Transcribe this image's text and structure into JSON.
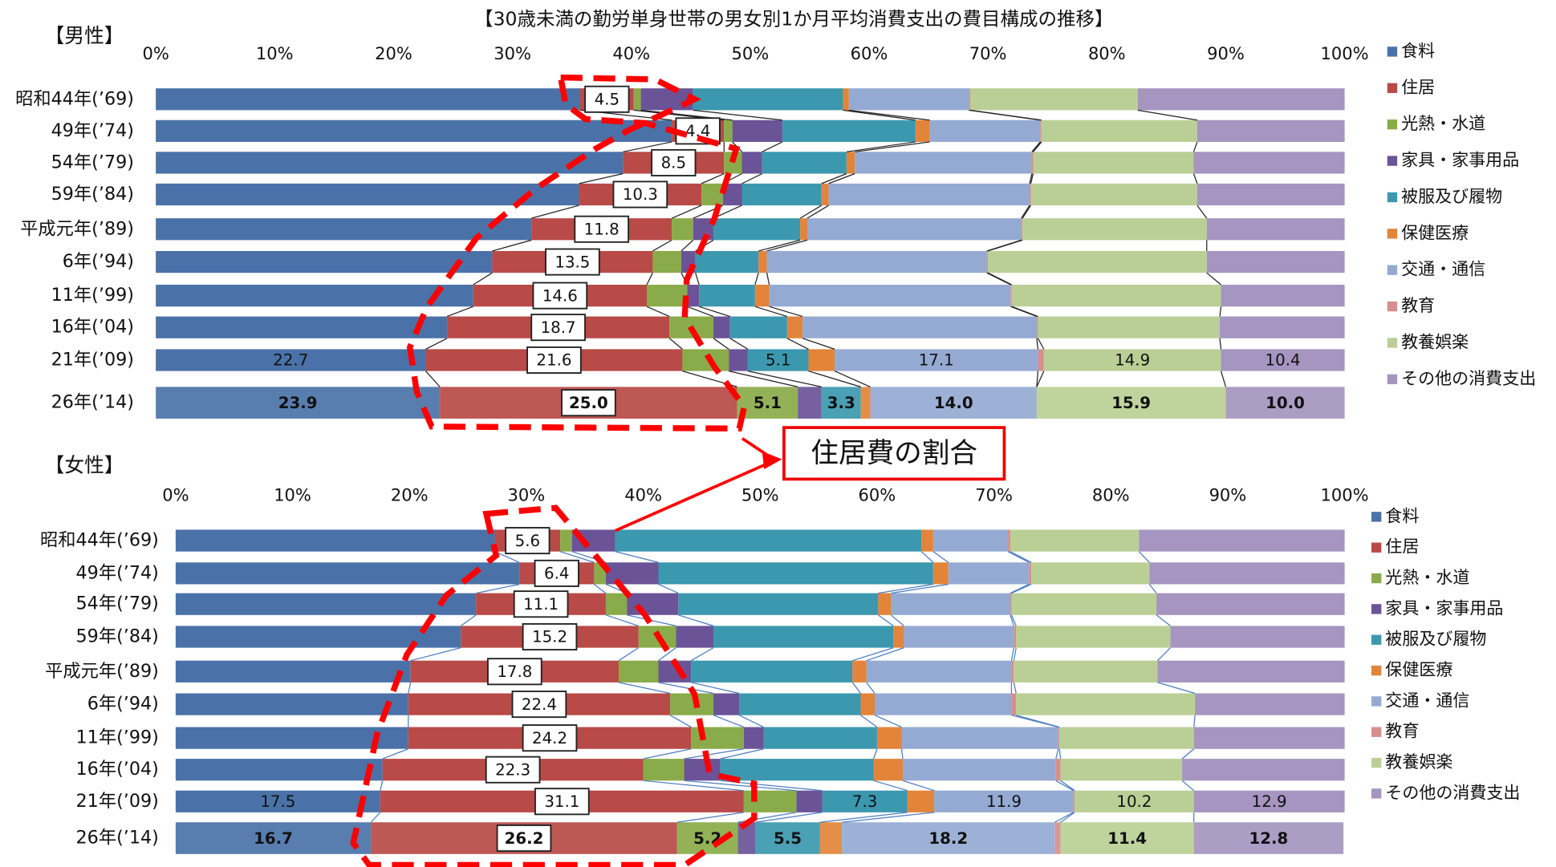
{
  "title": "【30歳未満の勤労単身世帯の男女別1か月平均消費支出の費目構成の推移】",
  "annotation": "住居費の割合",
  "chart_data": [
    {
      "type": "bar",
      "orientation": "horizontal",
      "stacked": true,
      "title": "【男性】",
      "categories": [
        "昭和44年(’69)",
        "49年(’74)",
        "54年(’79)",
        "59年(’84)",
        "平成元年(’89)",
        "6年(’94)",
        "11年(’99)",
        "16年(’04)",
        "21年(’09)",
        "26年(’14)"
      ],
      "xlim": [
        0,
        100
      ],
      "xticks": [
        {
          "value": 0,
          "label": "0%"
        },
        {
          "value": 10,
          "label": "10%"
        },
        {
          "value": 20,
          "label": "20%"
        },
        {
          "value": 30,
          "label": "30%"
        },
        {
          "value": 40,
          "label": "40%"
        },
        {
          "value": 50,
          "label": "50%"
        },
        {
          "value": 60,
          "label": "60%"
        },
        {
          "value": 70,
          "label": "70%"
        },
        {
          "value": 80,
          "label": "80%"
        },
        {
          "value": 90,
          "label": "90%"
        },
        {
          "value": 100,
          "label": "100%"
        }
      ],
      "series": [
        {
          "name": "食料",
          "color": "#4a72a8",
          "values": [
            35.7,
            43.4,
            39.3,
            35.6,
            31.6,
            28.3,
            26.7,
            24.5,
            22.7,
            23.9
          ],
          "value_labels": [
            null,
            null,
            null,
            null,
            null,
            null,
            null,
            null,
            "22.7",
            "23.9"
          ]
        },
        {
          "name": "住居",
          "color": "#b84a47",
          "values": [
            4.5,
            4.4,
            8.5,
            10.3,
            11.8,
            13.5,
            14.6,
            18.7,
            21.6,
            25
          ],
          "value_labels": [
            "4.5",
            "4.4",
            "8.5",
            "10.3",
            "11.8",
            "13.5",
            "14.6",
            "18.7",
            "21.6",
            "25.0"
          ]
        },
        {
          "name": "光熱・水道",
          "color": "#8aab49",
          "values": [
            0.6,
            0.7,
            1.5,
            1.8,
            1.8,
            2.4,
            3.4,
            3.7,
            3.9,
            5.1
          ],
          "value_labels": [
            null,
            null,
            null,
            null,
            null,
            null,
            null,
            null,
            null,
            "5.1"
          ]
        },
        {
          "name": "家具・家事用品",
          "color": "#6b5397",
          "values": [
            4.4,
            4.2,
            1.7,
            1.6,
            1.7,
            1.2,
            1.0,
            1.4,
            1.6,
            2.0
          ]
        },
        {
          "name": "被服及び履物",
          "color": "#3b98ae",
          "values": [
            12.6,
            11.2,
            7.1,
            6.7,
            7.3,
            5.3,
            4.7,
            4.8,
            5.1,
            3.3
          ],
          "value_labels": [
            null,
            null,
            null,
            null,
            null,
            null,
            null,
            null,
            "5.1",
            "3.3"
          ]
        },
        {
          "name": "保健医療",
          "color": "#e2843a",
          "values": [
            0.5,
            1.2,
            0.7,
            0.6,
            0.6,
            0.7,
            1.2,
            1.3,
            2.2,
            0.8
          ]
        },
        {
          "name": "交通・通信",
          "color": "#95aad3",
          "values": [
            10.1,
            9.3,
            14.9,
            16.9,
            18.0,
            18.5,
            20.3,
            19.7,
            17.1,
            14.0
          ],
          "value_labels": [
            null,
            null,
            null,
            null,
            null,
            null,
            null,
            null,
            "17.1",
            "14.0"
          ]
        },
        {
          "name": "教育",
          "color": "#d68f8d",
          "values": [
            0.1,
            0.1,
            0.1,
            0.1,
            0.1,
            0.1,
            0.1,
            0.1,
            0.5,
            0
          ]
        },
        {
          "name": "教養娯楽",
          "color": "#bacf95",
          "values": [
            14.1,
            13.1,
            13.5,
            14.0,
            15.5,
            18.4,
            17.6,
            15.3,
            14.9,
            15.9
          ],
          "value_labels": [
            null,
            null,
            null,
            null,
            null,
            null,
            null,
            null,
            "14.9",
            "15.9"
          ]
        },
        {
          "name": "その他の消費支出",
          "color": "#a595c0",
          "values": [
            17.4,
            12.4,
            12.7,
            12.4,
            11.6,
            11.6,
            10.4,
            10.5,
            10.4,
            10.0
          ],
          "value_labels": [
            null,
            null,
            null,
            null,
            null,
            null,
            null,
            null,
            "10.4",
            "10.0"
          ]
        }
      ]
    },
    {
      "type": "bar",
      "orientation": "horizontal",
      "stacked": true,
      "title": "【女性】",
      "categories": [
        "昭和44年(’69)",
        "49年(’74)",
        "54年(’79)",
        "59年(’84)",
        "平成元年(’89)",
        "6年(’94)",
        "11年(’99)",
        "16年(’04)",
        "21年(’09)",
        "26年(’14)"
      ],
      "xlim": [
        0,
        100
      ],
      "xticks": [
        {
          "value": 0,
          "label": "0%"
        },
        {
          "value": 10,
          "label": "10%"
        },
        {
          "value": 20,
          "label": "20%"
        },
        {
          "value": 30,
          "label": "30%"
        },
        {
          "value": 40,
          "label": "40%"
        },
        {
          "value": 50,
          "label": "50%"
        },
        {
          "value": 60,
          "label": "60%"
        },
        {
          "value": 70,
          "label": "70%"
        },
        {
          "value": 80,
          "label": "80%"
        },
        {
          "value": 90,
          "label": "90%"
        },
        {
          "value": 100,
          "label": "100%"
        }
      ],
      "series": [
        {
          "name": "食料",
          "color": "#4a72a8",
          "values": [
            27.3,
            29.4,
            25.7,
            24.4,
            20.1,
            19.9,
            19.9,
            17.7,
            17.5,
            16.7
          ],
          "value_labels": [
            null,
            null,
            null,
            null,
            null,
            null,
            null,
            null,
            "17.5",
            "16.7"
          ]
        },
        {
          "name": "住居",
          "color": "#b84a47",
          "values": [
            5.6,
            6.4,
            11.1,
            15.2,
            17.8,
            22.4,
            24.2,
            22.3,
            31.1,
            26.2
          ],
          "value_labels": [
            "5.6",
            "6.4",
            "11.1",
            "15.2",
            "17.8",
            "22.4",
            "24.2",
            "22.3",
            "31.1",
            "26.2"
          ]
        },
        {
          "name": "光熱・水道",
          "color": "#8aab49",
          "values": [
            1.0,
            1.0,
            1.8,
            3.2,
            3.4,
            3.7,
            4.5,
            3.5,
            4.5,
            5.2
          ],
          "value_labels": [
            null,
            null,
            null,
            null,
            null,
            null,
            null,
            null,
            null,
            "5.2"
          ]
        },
        {
          "name": "家具・家事用品",
          "color": "#6b5397",
          "values": [
            3.7,
            4.5,
            4.4,
            3.2,
            2.8,
            2.2,
            1.7,
            3.1,
            2.2,
            1.5
          ]
        },
        {
          "name": "被服及び履物",
          "color": "#3b98ae",
          "values": [
            26.2,
            23.5,
            17.1,
            15.4,
            13.8,
            10.4,
            9.7,
            13.1,
            7.3,
            5.5
          ],
          "value_labels": [
            null,
            null,
            null,
            null,
            null,
            null,
            null,
            null,
            "7.3",
            "5.5"
          ]
        },
        {
          "name": "保健医療",
          "color": "#e2843a",
          "values": [
            1.0,
            1.3,
            1.1,
            0.9,
            1.2,
            1.2,
            2.1,
            2.5,
            2.3,
            1.9
          ]
        },
        {
          "name": "交通・通信",
          "color": "#95aad3",
          "values": [
            6.4,
            6.9,
            10.2,
            9.4,
            12.4,
            11.7,
            13.4,
            13.1,
            11.9,
            18.2
          ],
          "value_labels": [
            null,
            null,
            null,
            null,
            null,
            null,
            null,
            null,
            "11.9",
            "18.2"
          ]
        },
        {
          "name": "教育",
          "color": "#d68f8d",
          "values": [
            0.2,
            0.2,
            0.1,
            0.2,
            0.2,
            0.4,
            0.1,
            0.4,
            0.1,
            0.5
          ]
        },
        {
          "name": "教養娯楽",
          "color": "#bacf95",
          "values": [
            11.0,
            10.1,
            12.4,
            13.2,
            12.3,
            15.3,
            11.5,
            10.4,
            10.2,
            11.4
          ],
          "value_labels": [
            null,
            null,
            null,
            null,
            null,
            null,
            null,
            null,
            "10.2",
            "11.4"
          ]
        },
        {
          "name": "その他の消費支出",
          "color": "#a595c0",
          "values": [
            17.6,
            16.7,
            16.1,
            14.9,
            16.0,
            12.8,
            12.9,
            13.9,
            12.9,
            12.8
          ],
          "value_labels": [
            null,
            null,
            null,
            null,
            null,
            null,
            null,
            null,
            "12.9",
            "12.8"
          ]
        }
      ]
    }
  ]
}
